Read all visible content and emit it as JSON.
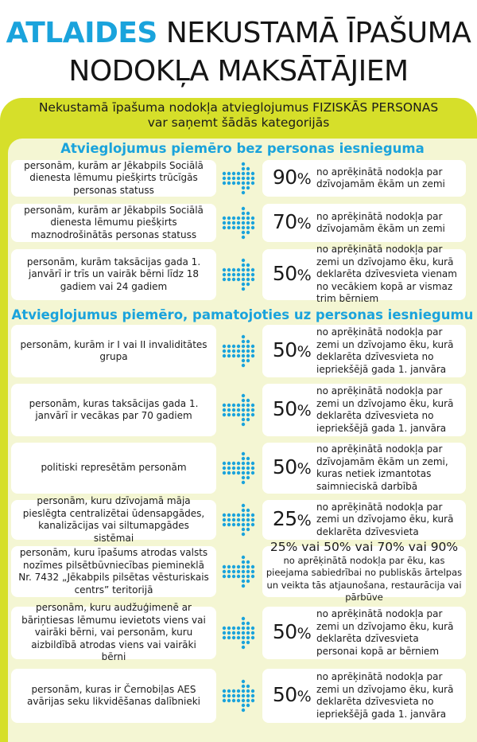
{
  "title": {
    "accent": "ATLAIDES",
    "rest": "NEKUSTAMĀ ĪPAŠUMA",
    "line2": "NODOKĻA MAKSĀTĀJIEM"
  },
  "header": {
    "line1": "Nekustamā īpašuma nodokļa atvieglojumus FIZISKĀS PERSONAS",
    "line2": "var saņemt šādās kategorijās"
  },
  "colors": {
    "accent": "#1aa3dc",
    "frame": "#d6df2a",
    "panel": "#f4f6d3",
    "arrow_dot": "#1aa3dc"
  },
  "sections": [
    {
      "title": "Atvieglojumus piemēro bez personas iesnieguma",
      "rows": [
        {
          "category": "personām, kurām ar Jēkabpils Sociālā dienesta lēmumu piešķirts trūcīgās personas statuss",
          "percent": "90",
          "description": "no aprēķinātā nodokļa par dzīvojamām ēkām un zemi"
        },
        {
          "category": "personām, kurām ar Jēkabpils Sociālā dienesta lēmumu piešķirts maznodrošinātās personas statuss",
          "percent": "70",
          "description": "no aprēķinātā nodokļa par dzīvojamām ēkām un zemi"
        },
        {
          "category": "personām, kurām taksācijas gada 1. janvārī ir trīs un vairāk bērni līdz 18 gadiem vai 24 gadiem",
          "percent": "50",
          "description": "no aprēķinātā nodokļa par zemi un dzīvojamo ēku, kurā deklarēta dzīvesvieta vienam no vecākiem kopā ar vismaz trim bērniem"
        }
      ]
    },
    {
      "title": "Atvieglojumus piemēro, pamatojoties uz personas iesniegumu",
      "rows": [
        {
          "category": "personām, kurām ir I vai II invaliditātes grupa",
          "percent": "50",
          "description": "no aprēķinātā nodokļa par zemi un dzīvojamo ēku, kurā deklarēta dzīvesvieta no iepriekšējā gada 1. janvāra"
        },
        {
          "category": "personām, kuras taksācijas gada 1. janvārī ir vecākas par 70 gadiem",
          "percent": "50",
          "description": "no aprēķinātā nodokļa par zemi un dzīvojamo ēku, kurā deklarēta dzīvesvieta no iepriekšējā gada 1. janvāra"
        },
        {
          "category": "politiski represētām personām",
          "percent": "50",
          "description": "no aprēķinātā nodokļa par dzīvojamām ēkām un zemi, kuras netiek izmantotas saimnieciskā darbībā"
        },
        {
          "category": "personām, kuru dzīvojamā māja pieslēgta centralizētai ūdensapgādes, kanalizācijas vai siltumapgādes sistēmai",
          "percent": "25",
          "description": "no aprēķinātā nodokļa par zemi un dzīvojamo ēku, kurā deklarēta dzīvesvieta"
        },
        {
          "category": "personām, kuru īpašums atrodas valsts nozīmes pilsētbūvniecības piemineklā Nr. 7432 „Jēkabpils pilsētas vēsturiskais centrs” teritorijā",
          "special_percent": "25% vai 50% vai 70% vai 90%",
          "description": "no aprēķinātā nodokļa par ēku, kas pieejama sabiedrībai no publiskās ārtelpas un veikta tās atjaunošana, restaurācija vai pārbūve"
        },
        {
          "category": "personām, kuru audžuģimenē ar bāriņtiesas lēmumu ievietots viens vai vairāki bērni, vai personām, kuru aizbildībā atrodas viens vai vairāki bērni",
          "percent": "50",
          "description": "no aprēķinātā nodokļa par zemi un dzīvojamo ēku, kurā deklarēta dzīvesvieta personai kopā ar bērniem"
        },
        {
          "category": "personām, kuras ir Černobiļas AES avārijas seku likvidēšanas dalībnieki",
          "percent": "50",
          "description": "no aprēķinātā nodokļa par zemi un dzīvojamo ēku, kurā deklarēta dzīvesvieta no iepriekšējā gada 1. janvāra"
        }
      ]
    }
  ]
}
